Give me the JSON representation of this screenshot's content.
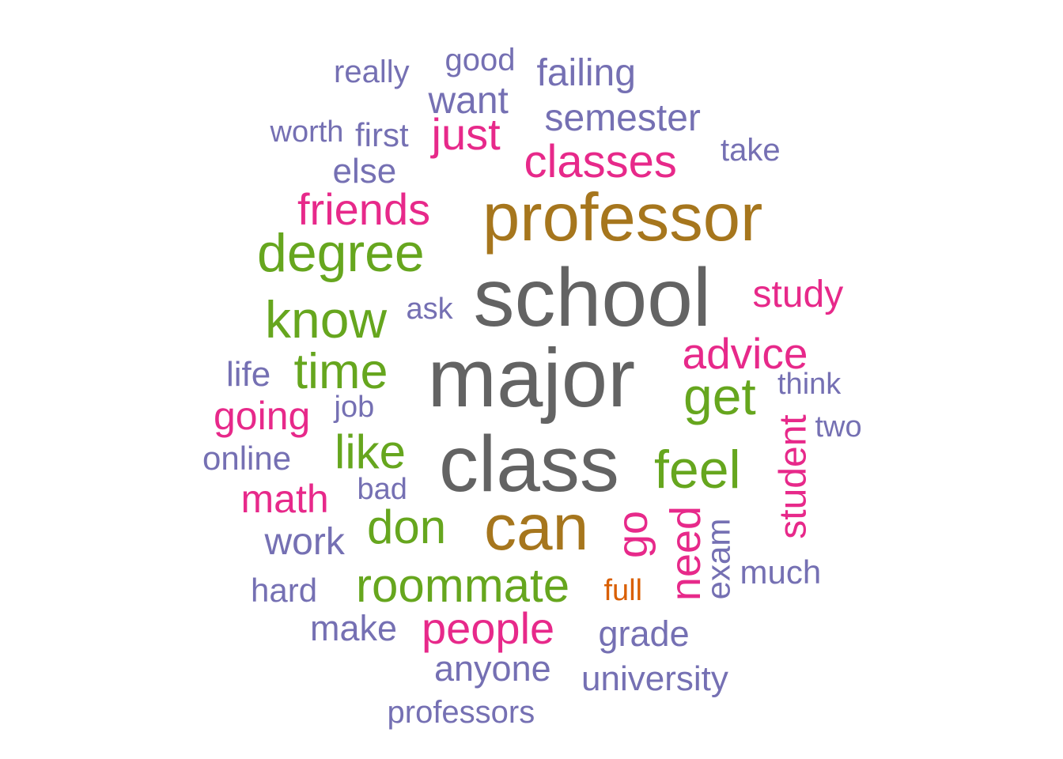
{
  "palette": {
    "gray": "#636363",
    "brown": "#a6761d",
    "green": "#66a61e",
    "pink": "#e7298a",
    "purple": "#7570b3",
    "orange": "#d95f02"
  },
  "words": [
    {
      "text": "major",
      "color": "gray"
    },
    {
      "text": "school",
      "color": "gray"
    },
    {
      "text": "class",
      "color": "gray"
    },
    {
      "text": "professor",
      "color": "brown"
    },
    {
      "text": "can",
      "color": "brown"
    },
    {
      "text": "degree",
      "color": "green"
    },
    {
      "text": "know",
      "color": "green"
    },
    {
      "text": "time",
      "color": "green"
    },
    {
      "text": "get",
      "color": "green"
    },
    {
      "text": "feel",
      "color": "green"
    },
    {
      "text": "like",
      "color": "green"
    },
    {
      "text": "don",
      "color": "green"
    },
    {
      "text": "roommate",
      "color": "green"
    },
    {
      "text": "classes",
      "color": "pink"
    },
    {
      "text": "friends",
      "color": "pink"
    },
    {
      "text": "just",
      "color": "pink"
    },
    {
      "text": "advice",
      "color": "pink"
    },
    {
      "text": "study",
      "color": "pink"
    },
    {
      "text": "going",
      "color": "pink"
    },
    {
      "text": "math",
      "color": "pink"
    },
    {
      "text": "people",
      "color": "pink"
    },
    {
      "text": "go",
      "color": "pink"
    },
    {
      "text": "need",
      "color": "pink"
    },
    {
      "text": "student",
      "color": "pink"
    },
    {
      "text": "really",
      "color": "purple"
    },
    {
      "text": "good",
      "color": "purple"
    },
    {
      "text": "failing",
      "color": "purple"
    },
    {
      "text": "want",
      "color": "purple"
    },
    {
      "text": "semester",
      "color": "purple"
    },
    {
      "text": "worth",
      "color": "purple"
    },
    {
      "text": "first",
      "color": "purple"
    },
    {
      "text": "take",
      "color": "purple"
    },
    {
      "text": "else",
      "color": "purple"
    },
    {
      "text": "ask",
      "color": "purple"
    },
    {
      "text": "life",
      "color": "purple"
    },
    {
      "text": "think",
      "color": "purple"
    },
    {
      "text": "job",
      "color": "purple"
    },
    {
      "text": "two",
      "color": "purple"
    },
    {
      "text": "online",
      "color": "purple"
    },
    {
      "text": "bad",
      "color": "purple"
    },
    {
      "text": "work",
      "color": "purple"
    },
    {
      "text": "exam",
      "color": "purple"
    },
    {
      "text": "much",
      "color": "purple"
    },
    {
      "text": "hard",
      "color": "purple"
    },
    {
      "text": "full",
      "color": "orange"
    },
    {
      "text": "make",
      "color": "purple"
    },
    {
      "text": "grade",
      "color": "purple"
    },
    {
      "text": "anyone",
      "color": "purple"
    },
    {
      "text": "university",
      "color": "purple"
    },
    {
      "text": "professors",
      "color": "purple"
    }
  ]
}
